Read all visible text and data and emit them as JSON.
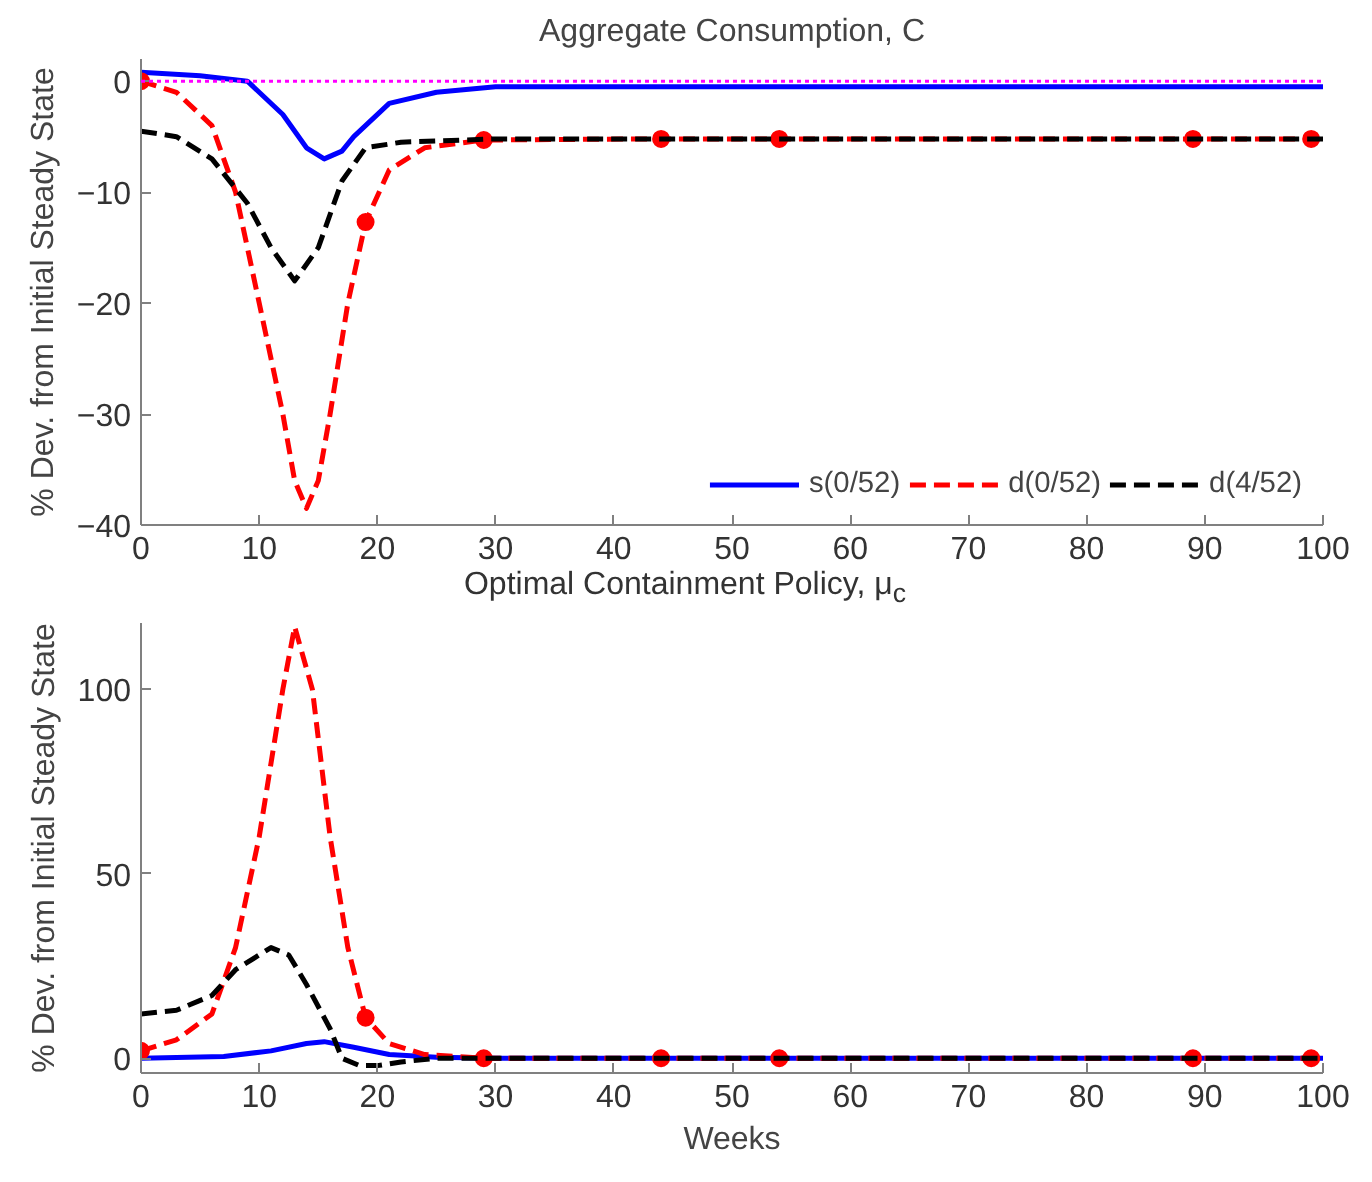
{
  "chart_data": [
    {
      "type": "line",
      "title": "Aggregate Consumption, C",
      "ylabel": "% Dev. from Initial Steady State",
      "xlim": [
        0,
        100
      ],
      "ylim": [
        -40,
        2
      ],
      "xticks": [
        0,
        10,
        20,
        30,
        40,
        50,
        60,
        70,
        80,
        90,
        100
      ],
      "yticks": [
        -40,
        -30,
        -20,
        -10,
        0
      ],
      "grid": false,
      "legend": "bottom right",
      "ref_lines": [
        {
          "axis": "y",
          "value": 0,
          "color": "#ff00ff",
          "line_style": "dotted"
        }
      ],
      "series": [
        {
          "name": "s(0/52)",
          "color": "#0000ff",
          "line_style": "solid",
          "x": [
            0,
            5,
            9,
            12,
            14,
            15.5,
            17,
            18,
            21,
            25,
            30,
            50,
            100
          ],
          "values": [
            0.8,
            0.5,
            0,
            -3,
            -6,
            -7,
            -6.3,
            -5,
            -2,
            -1,
            -0.5,
            -0.5,
            -0.5
          ]
        },
        {
          "name": "d(0/52)",
          "color": "#ff0000",
          "line_style": "dashed",
          "x": [
            0,
            3,
            6,
            8,
            10,
            12,
            13,
            14,
            15,
            16,
            17.5,
            19,
            21,
            24,
            29,
            44,
            54,
            89,
            99,
            100
          ],
          "values": [
            0,
            -1,
            -4,
            -10,
            -20,
            -30,
            -36,
            -38.5,
            -36,
            -30,
            -20,
            -12.7,
            -8,
            -6,
            -5.3,
            -5.2,
            -5.2,
            -5.2,
            -5.2,
            -5.2
          ]
        },
        {
          "type": "scatter",
          "marker": "circle",
          "color": "#ff0000",
          "x": [
            0,
            19,
            29,
            44,
            54,
            89,
            99
          ],
          "values": [
            0,
            -12.7,
            -5.3,
            -5.2,
            -5.2,
            -5.2,
            -5.2
          ]
        },
        {
          "name": "d(4/52)",
          "color": "#000000",
          "line_style": "dashed",
          "x": [
            0,
            3,
            6,
            9,
            11,
            13,
            15,
            17,
            19,
            22,
            30,
            100
          ],
          "values": [
            -4.5,
            -5,
            -7,
            -11,
            -15,
            -18,
            -15,
            -9,
            -6,
            -5.5,
            -5.2,
            -5.2
          ]
        }
      ]
    },
    {
      "type": "line",
      "title": "Optimal Containment Policy, μ$_{c}$",
      "xlabel": "Weeks",
      "ylabel": "% Dev. from Initial Steady State",
      "xlim": [
        0,
        100
      ],
      "ylim": [
        -4,
        118
      ],
      "xticks": [
        0,
        10,
        20,
        30,
        40,
        50,
        60,
        70,
        80,
        90,
        100
      ],
      "yticks": [
        0,
        50,
        100
      ],
      "grid": false,
      "series": [
        {
          "color": "#0000ff",
          "line_style": "solid",
          "x": [
            0,
            7,
            11,
            14,
            15.5,
            18,
            21,
            25,
            30,
            100
          ],
          "values": [
            0,
            0.5,
            2,
            4,
            4.5,
            3,
            1,
            0.3,
            0,
            0
          ]
        },
        {
          "color": "#ff0000",
          "line_style": "dashed",
          "x": [
            0,
            3,
            6,
            8,
            10,
            12,
            13,
            14.5,
            16,
            17.5,
            19,
            21,
            24,
            29,
            44,
            54,
            89,
            99,
            100
          ],
          "values": [
            2,
            5,
            12,
            30,
            60,
            100,
            117,
            100,
            60,
            30,
            11,
            4,
            1,
            0,
            0,
            0,
            0,
            0,
            0
          ]
        },
        {
          "type": "scatter",
          "marker": "circle",
          "color": "#ff0000",
          "x": [
            0,
            19,
            29,
            44,
            54,
            89,
            99
          ],
          "values": [
            2,
            11,
            0,
            0,
            0,
            0,
            0
          ]
        },
        {
          "color": "#000000",
          "line_style": "dashed",
          "x": [
            0,
            3,
            6,
            8,
            11,
            12.5,
            14,
            16,
            17,
            18.5,
            20,
            22,
            25,
            30,
            100
          ],
          "values": [
            12,
            13,
            17,
            24,
            30,
            28,
            20,
            8,
            0,
            -2,
            -2,
            -1,
            0,
            0,
            0
          ]
        }
      ]
    }
  ]
}
